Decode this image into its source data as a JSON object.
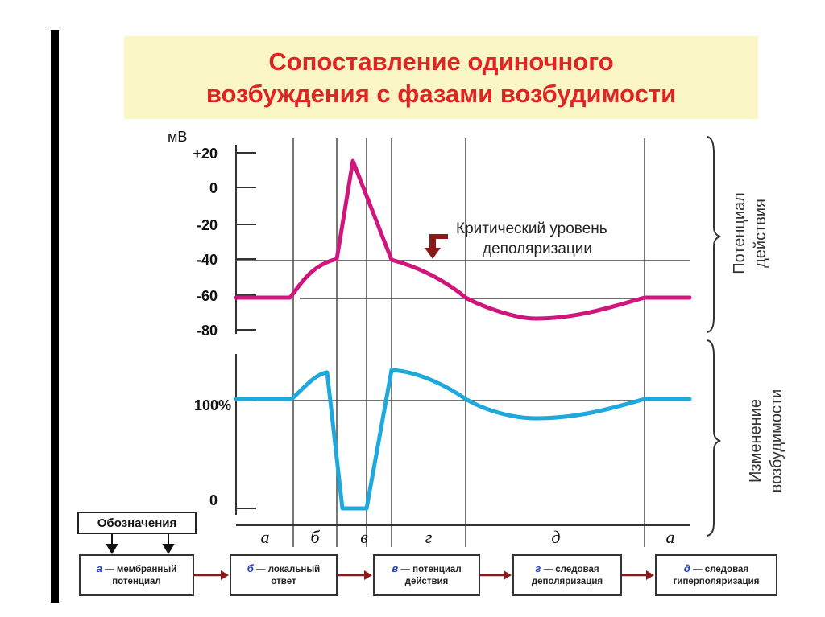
{
  "title": {
    "line1": "Сопоставление одиночного",
    "line2": "возбуждения  с фазами возбудимости"
  },
  "chart_data": {
    "type": "line",
    "top_chart": {
      "unit_label": "мВ",
      "y_ticks": [
        "+20",
        "0",
        "-20",
        "-40",
        "-60",
        "-80"
      ],
      "y_tick_values": [
        20,
        0,
        -20,
        -40,
        -60,
        -80
      ],
      "series_color": "#d0167c",
      "critical_level_mv": -40,
      "resting_level_mv": -62,
      "peak_mv": 17,
      "side_label_line1": "Потенциал",
      "side_label_line2": "действия",
      "annotation_line1": "Критический уровень",
      "annotation_line2": "деполяризации"
    },
    "bottom_chart": {
      "y_ticks": [
        "100%",
        "0"
      ],
      "series_color": "#1ea8dc",
      "side_label_line1": "Изменение",
      "side_label_line2": "возбудимости"
    },
    "phases": [
      "а",
      "б",
      "в",
      "г",
      "д",
      "а"
    ]
  },
  "legend": {
    "heading": "Обозначения",
    "items": [
      {
        "letter": "а",
        "line1": " — мембранный",
        "line2": "потенциал"
      },
      {
        "letter": "б",
        "line1": " — локальный",
        "line2": "ответ"
      },
      {
        "letter": "в",
        "line1": " — потенциал",
        "line2": "действия"
      },
      {
        "letter": "г",
        "line1": " — следовая",
        "line2": "деполяризация"
      },
      {
        "letter": "д",
        "line1": " — следовая",
        "line2": "гиперполяризация"
      }
    ],
    "arrow_color": "#8b1a1a"
  }
}
